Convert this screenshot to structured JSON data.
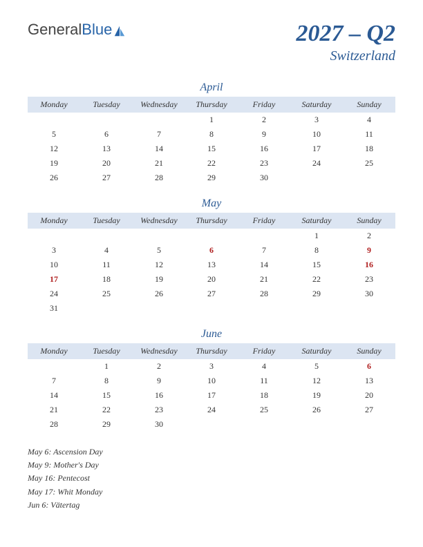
{
  "logo": {
    "part1": "General",
    "part2": "Blue"
  },
  "title": {
    "quarter": "2027 – Q2",
    "country": "Switzerland"
  },
  "colors": {
    "accent": "#2b5a94",
    "header_bg": "#dce5f2",
    "holiday": "#b02020",
    "text": "#333333",
    "background": "#ffffff"
  },
  "weekdays": [
    "Monday",
    "Tuesday",
    "Wednesday",
    "Thursday",
    "Friday",
    "Saturday",
    "Sunday"
  ],
  "months": [
    {
      "name": "April",
      "weeks": [
        [
          "",
          "",
          "",
          "1",
          "2",
          "3",
          "4"
        ],
        [
          "5",
          "6",
          "7",
          "8",
          "9",
          "10",
          "11"
        ],
        [
          "12",
          "13",
          "14",
          "15",
          "16",
          "17",
          "18"
        ],
        [
          "19",
          "20",
          "21",
          "22",
          "23",
          "24",
          "25"
        ],
        [
          "26",
          "27",
          "28",
          "29",
          "30",
          "",
          ""
        ]
      ],
      "holidays_idx": []
    },
    {
      "name": "May",
      "weeks": [
        [
          "",
          "",
          "",
          "",
          "",
          "1",
          "2"
        ],
        [
          "3",
          "4",
          "5",
          "6",
          "7",
          "8",
          "9"
        ],
        [
          "10",
          "11",
          "12",
          "13",
          "14",
          "15",
          "16"
        ],
        [
          "17",
          "18",
          "19",
          "20",
          "21",
          "22",
          "23"
        ],
        [
          "24",
          "25",
          "26",
          "27",
          "28",
          "29",
          "30"
        ],
        [
          "31",
          "",
          "",
          "",
          "",
          "",
          ""
        ]
      ],
      "holidays_idx": [
        [
          1,
          3
        ],
        [
          1,
          6
        ],
        [
          2,
          6
        ],
        [
          3,
          0
        ]
      ]
    },
    {
      "name": "June",
      "weeks": [
        [
          "",
          "1",
          "2",
          "3",
          "4",
          "5",
          "6"
        ],
        [
          "7",
          "8",
          "9",
          "10",
          "11",
          "12",
          "13"
        ],
        [
          "14",
          "15",
          "16",
          "17",
          "18",
          "19",
          "20"
        ],
        [
          "21",
          "22",
          "23",
          "24",
          "25",
          "26",
          "27"
        ],
        [
          "28",
          "29",
          "30",
          "",
          "",
          "",
          ""
        ]
      ],
      "holidays_idx": [
        [
          0,
          6
        ]
      ]
    }
  ],
  "holiday_list": [
    "May 6: Ascension Day",
    "May 9: Mother's Day",
    "May 16: Pentecost",
    "May 17: Whit Monday",
    "Jun 6: Vätertag"
  ]
}
